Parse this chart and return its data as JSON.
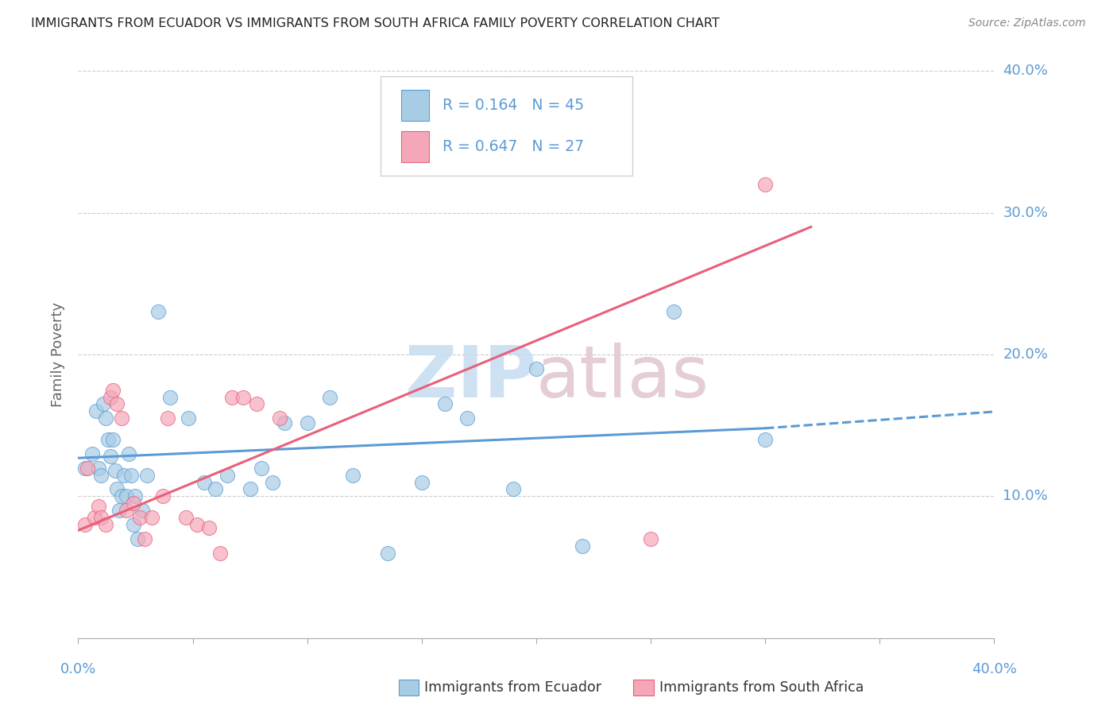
{
  "title": "IMMIGRANTS FROM ECUADOR VS IMMIGRANTS FROM SOUTH AFRICA FAMILY POVERTY CORRELATION CHART",
  "source": "Source: ZipAtlas.com",
  "ylabel": "Family Poverty",
  "xlim": [
    0.0,
    0.4
  ],
  "ylim": [
    0.0,
    0.4
  ],
  "ecuador_color": "#a8cce4",
  "ecuador_edge": "#5b9bd5",
  "sa_color": "#f4a7b9",
  "sa_edge": "#e8607a",
  "R_ecuador": "0.164",
  "N_ecuador": "45",
  "R_sa": "0.647",
  "N_sa": "27",
  "ecuador_x": [
    0.003,
    0.006,
    0.008,
    0.009,
    0.01,
    0.011,
    0.012,
    0.013,
    0.014,
    0.015,
    0.016,
    0.017,
    0.018,
    0.019,
    0.02,
    0.021,
    0.022,
    0.023,
    0.024,
    0.025,
    0.026,
    0.028,
    0.03,
    0.035,
    0.04,
    0.048,
    0.055,
    0.06,
    0.065,
    0.075,
    0.08,
    0.085,
    0.09,
    0.1,
    0.11,
    0.12,
    0.135,
    0.15,
    0.16,
    0.17,
    0.19,
    0.2,
    0.22,
    0.26,
    0.3
  ],
  "ecuador_y": [
    0.12,
    0.13,
    0.16,
    0.12,
    0.115,
    0.165,
    0.155,
    0.14,
    0.128,
    0.14,
    0.118,
    0.105,
    0.09,
    0.1,
    0.115,
    0.1,
    0.13,
    0.115,
    0.08,
    0.1,
    0.07,
    0.09,
    0.115,
    0.23,
    0.17,
    0.155,
    0.11,
    0.105,
    0.115,
    0.105,
    0.12,
    0.11,
    0.152,
    0.152,
    0.17,
    0.115,
    0.06,
    0.11,
    0.165,
    0.155,
    0.105,
    0.19,
    0.065,
    0.23,
    0.14
  ],
  "sa_x": [
    0.003,
    0.004,
    0.007,
    0.009,
    0.01,
    0.012,
    0.014,
    0.015,
    0.017,
    0.019,
    0.021,
    0.024,
    0.027,
    0.029,
    0.032,
    0.037,
    0.039,
    0.047,
    0.052,
    0.057,
    0.062,
    0.067,
    0.072,
    0.078,
    0.088,
    0.25,
    0.3
  ],
  "sa_y": [
    0.08,
    0.12,
    0.085,
    0.093,
    0.085,
    0.08,
    0.17,
    0.175,
    0.165,
    0.155,
    0.09,
    0.095,
    0.085,
    0.07,
    0.085,
    0.1,
    0.155,
    0.085,
    0.08,
    0.078,
    0.06,
    0.17,
    0.17,
    0.165,
    0.155,
    0.07,
    0.32
  ],
  "ecuador_trend": [
    0.0,
    0.3,
    0.127,
    0.148
  ],
  "ecuador_extrap": [
    0.3,
    0.42,
    0.148,
    0.162
  ],
  "sa_trend": [
    0.0,
    0.32,
    0.076,
    0.29
  ],
  "grid_color": "#cccccc",
  "title_color": "#222222",
  "tick_color": "#5b9bd5",
  "label_color": "#666666",
  "bg_color": "#ffffff",
  "wm_zip_color": "#c5dcf0",
  "wm_atlas_color": "#e0c5d0"
}
